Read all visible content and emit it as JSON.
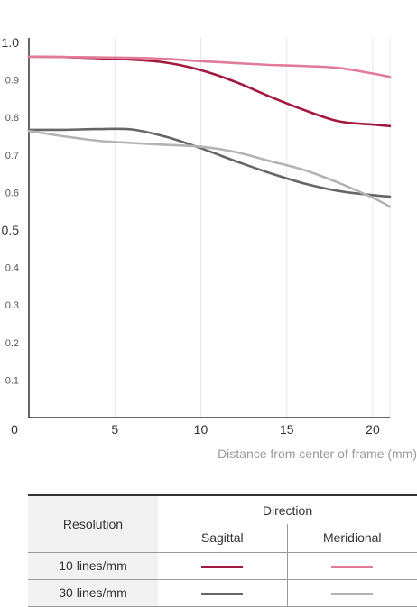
{
  "chart_data": {
    "type": "line",
    "xlabel": "Distance from center of frame (mm)",
    "ylabel": "",
    "title": "",
    "xlim": [
      0,
      21
    ],
    "ylim": [
      0,
      1.0
    ],
    "x_ticks": [
      {
        "value": 0,
        "label": "0"
      },
      {
        "value": 5,
        "label": "5"
      },
      {
        "value": 10,
        "label": "10"
      },
      {
        "value": 15,
        "label": "15"
      },
      {
        "value": 20,
        "label": "20"
      }
    ],
    "y_ticks_major": [
      {
        "value": 0.5,
        "label": "0.5"
      },
      {
        "value": 1.0,
        "label": "1.0"
      }
    ],
    "y_ticks_minor": [
      {
        "value": 0.1,
        "label": "0.1"
      },
      {
        "value": 0.2,
        "label": "0.2"
      },
      {
        "value": 0.3,
        "label": "0.3"
      },
      {
        "value": 0.4,
        "label": "0.4"
      },
      {
        "value": 0.6,
        "label": "0.6"
      },
      {
        "value": 0.7,
        "label": "0.7"
      },
      {
        "value": 0.8,
        "label": "0.8"
      },
      {
        "value": 0.9,
        "label": "0.9"
      }
    ],
    "gridlines": "vertical",
    "series": [
      {
        "color": "#a3193e",
        "x": [
          0,
          2,
          4,
          6,
          8,
          10,
          12,
          14,
          16,
          18,
          20,
          21
        ],
        "y": [
          0.962,
          0.961,
          0.958,
          0.954,
          0.946,
          0.926,
          0.895,
          0.856,
          0.82,
          0.79,
          0.781,
          0.777
        ]
      },
      {
        "color": "#e27a9a",
        "x": [
          0,
          2,
          4,
          6,
          8,
          10,
          12,
          14,
          16,
          18,
          20,
          21
        ],
        "y": [
          0.962,
          0.961,
          0.96,
          0.959,
          0.956,
          0.95,
          0.945,
          0.94,
          0.937,
          0.932,
          0.917,
          0.908
        ]
      },
      {
        "color": "#666666",
        "x": [
          0,
          2,
          4,
          6,
          8,
          10,
          12,
          14,
          16,
          18,
          20,
          21
        ],
        "y": [
          0.767,
          0.767,
          0.769,
          0.768,
          0.748,
          0.718,
          0.684,
          0.652,
          0.624,
          0.604,
          0.593,
          0.589
        ]
      },
      {
        "color": "#b3b3b3",
        "x": [
          0,
          2,
          4,
          6,
          8,
          10,
          12,
          14,
          16,
          18,
          20,
          21
        ],
        "y": [
          0.764,
          0.75,
          0.738,
          0.732,
          0.727,
          0.722,
          0.708,
          0.684,
          0.66,
          0.626,
          0.586,
          0.562
        ]
      }
    ]
  },
  "legend": {
    "header_resolution": "Resolution",
    "header_direction": "Direction",
    "col_sagittal": "Sagittal",
    "col_meridional": "Meridional",
    "row_10": "10 lines/mm",
    "row_30": "30 lines/mm",
    "colors": {
      "s10": "#a3193e",
      "m10": "#e27a9a",
      "s30": "#666666",
      "m30": "#b3b3b3"
    }
  }
}
